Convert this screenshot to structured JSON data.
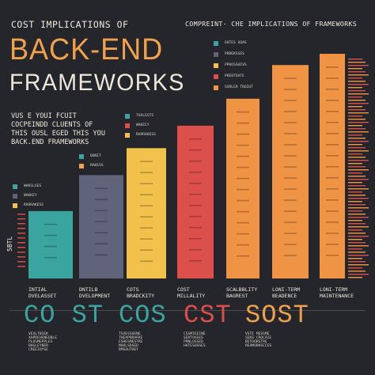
{
  "header": {
    "title_line1": "COST IMPLICATIONS OF",
    "title_line2": "BACK-END",
    "title_line3": "FRAMEWORKS",
    "subtitle": "COMPREINT· CHE IMPLICATIONS OF FRAMEWORKS"
  },
  "intro": {
    "lines": [
      "VUS E YOUI FCUIT",
      "COCPEINDD CLUENTS OF",
      "THIS OUSL EGED THIS YOU",
      "BACK.END FRAMEWORKS"
    ]
  },
  "axis_label": "5BTL",
  "legends": {
    "top": [
      "OXTES VOAS",
      "PRREKSSES",
      "PPHOSSHIVS",
      "PRE0TOATE",
      "SSRLER TROIOT"
    ],
    "mid_left": [
      "TVALESTS",
      "WAKEEY",
      "RVHRAKESS"
    ],
    "left_a": [
      "BOKET",
      "RAKESS"
    ],
    "left_b": [
      "WAKSLSES",
      "WAKKEY",
      "RVHRAKESS"
    ]
  },
  "colors": {
    "teal": "#3aa59f",
    "slate": "#61637b",
    "yellow": "#f2c14c",
    "red": "#dc4f4b",
    "orange": "#ef9345",
    "accent_orange": "#f0a14a",
    "background": "#24262c"
  },
  "chart_data": {
    "type": "bar",
    "categories": [
      "INTIAL\nDVELASSET",
      "DNTILB\nDVELOPMENT",
      "COTS\nBRADCKITY",
      "COST\nMILLALITY",
      "SCALBBLITY\nBAGREST",
      "LONI-TERM\nBEADENCE",
      "LONI-TERM\nMAINTENANCE"
    ],
    "values": [
      30,
      46,
      58,
      68,
      80,
      95,
      100
    ],
    "colors": [
      "#3aa59f",
      "#61637b",
      "#f2c14c",
      "#dc4f4b",
      "#ef9345",
      "#ef9345",
      "#ef9345"
    ],
    "ylim": [
      0,
      100
    ],
    "grid": false,
    "xlabel": "",
    "ylabel": ""
  },
  "bottom": [
    {
      "word": "CO ST",
      "color": "#3aa59f",
      "lines": [
        "VEXLTBIEK",
        "XAPREHENEOBLE",
        "PLOSMEPPLES",
        "BAGLEYNER",
        "CREEIOYSE"
      ]
    },
    {
      "word": "COS",
      "color": "#3aa59f",
      "lines": [
        "TSXESSUENE",
        "THEXPRRAFKE",
        "ESHESMESTRE",
        "MOOLSDSED",
        "RMSOUTHEY"
      ]
    },
    {
      "word": "CST",
      "color": "#dc4f4b",
      "lines": [
        "CSSMIEEINE",
        "SERTOSSES",
        "PRNLOSSED",
        "HATESOSSES"
      ]
    },
    {
      "word": "SOST",
      "color": "#f0a14a",
      "lines": [
        "VSTE MESSME",
        "SEKS CROCAIE",
        "BETOORSTRE",
        "REAMORKSCCES"
      ]
    }
  ]
}
